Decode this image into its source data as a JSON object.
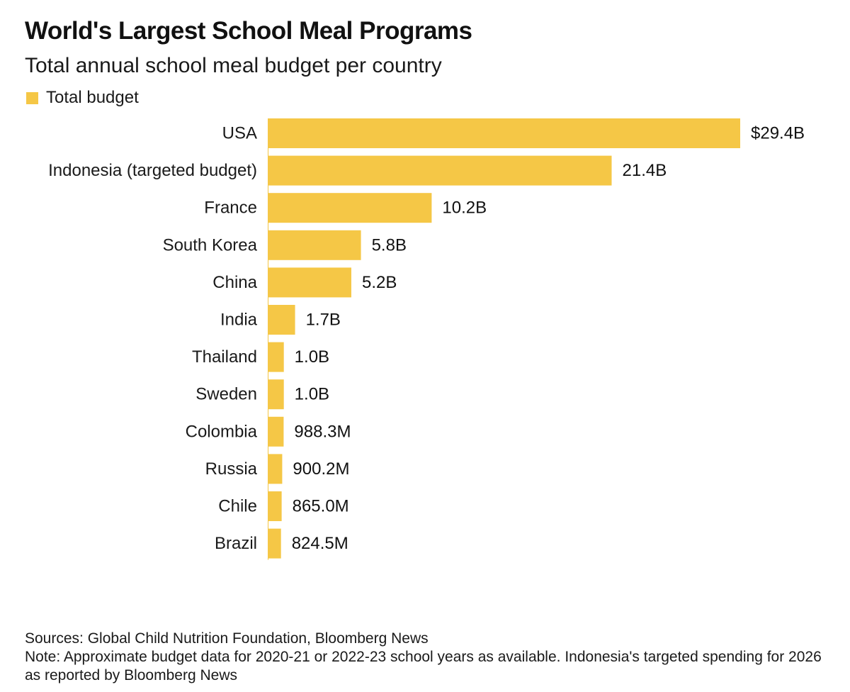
{
  "chart_data": {
    "type": "bar",
    "orientation": "horizontal",
    "title": "World's Largest School Meal Programs",
    "subtitle": "Total annual school meal budget per country",
    "legend": {
      "placement": "top-left",
      "entries": [
        "Total budget"
      ]
    },
    "categories": [
      "USA",
      "Indonesia (targeted budget)",
      "France",
      "South Korea",
      "China",
      "India",
      "Thailand",
      "Sweden",
      "Colombia",
      "Russia",
      "Chile",
      "Brazil"
    ],
    "series": [
      {
        "name": "Total budget",
        "color": "#f5c746",
        "values": [
          29.4,
          21.4,
          10.2,
          5.8,
          5.2,
          1.7,
          1.0,
          1.0,
          0.9883,
          0.9002,
          0.865,
          0.8245
        ],
        "value_labels": [
          "$29.4B",
          "21.4B",
          "10.2B",
          "5.8B",
          "5.2B",
          "1.7B",
          "1.0B",
          "1.0B",
          "988.3M",
          "900.2M",
          "865.0M",
          "824.5M"
        ]
      }
    ],
    "value_unit": "billions USD",
    "xlim": [
      0,
      29.4
    ],
    "grid": false,
    "baseline": true
  },
  "footer": {
    "sources": "Sources: Global Child Nutrition Foundation, Bloomberg News",
    "note": "Note: Approximate budget data for 2020-21 or 2022-23 school years as available. Indonesia's targeted spending for 2026 as reported by Bloomberg News"
  },
  "colors": {
    "bar": "#f5c746",
    "text": "#1a1a1a",
    "baseline": "#f5c746"
  }
}
